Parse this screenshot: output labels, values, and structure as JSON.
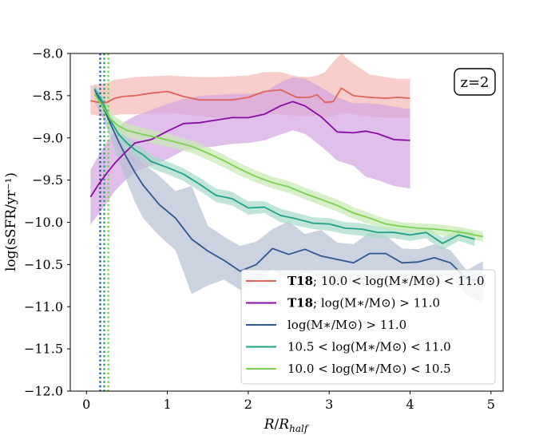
{
  "chart_data": {
    "type": "line",
    "title": "",
    "xlabel": "R/R_half",
    "ylabel": "log(sSFR/yr⁻¹)",
    "xlim": [
      -0.2,
      5.15
    ],
    "ylim": [
      -12.0,
      -8.0
    ],
    "x_ticks": [
      0,
      1,
      2,
      3,
      4,
      5
    ],
    "x_tick_labels": [
      "0",
      "1",
      "2",
      "3",
      "4",
      "5"
    ],
    "y_ticks": [
      -12.0,
      -11.5,
      -11.0,
      -10.5,
      -10.0,
      -9.5,
      -9.0,
      -8.5,
      -8.0
    ],
    "y_tick_labels": [
      "−12.0",
      "−11.5",
      "−11.0",
      "−10.5",
      "−10.0",
      "−9.5",
      "−9.0",
      "−8.5",
      "−8.0"
    ],
    "annotation": "z=2",
    "legend_position": "bottom-right",
    "vlines": [
      {
        "x": 0.17,
        "color": "#31578c",
        "style": "dotted"
      },
      {
        "x": 0.22,
        "color": "#1fa187",
        "style": "dotted"
      },
      {
        "x": 0.27,
        "color": "#7ad151",
        "style": "dotted"
      }
    ],
    "series": [
      {
        "name": "T18; 10.0 < log(M*/M☉) < 11.0",
        "legend_bold": "T18",
        "legend_rest": "; 10.0 < log(M∗/M⊙) < 11.0",
        "color": "#e0635a",
        "band_color": "#f4b9b4",
        "x": [
          0.05,
          0.15,
          0.25,
          0.35,
          0.45,
          0.6,
          0.8,
          1.0,
          1.2,
          1.4,
          1.6,
          1.8,
          2.0,
          2.2,
          2.4,
          2.6,
          2.75,
          2.85,
          2.95,
          3.05,
          3.15,
          3.3,
          3.5,
          3.7,
          3.85,
          4.0
        ],
        "y": [
          -8.56,
          -8.58,
          -8.58,
          -8.53,
          -8.51,
          -8.5,
          -8.47,
          -8.45,
          -8.51,
          -8.55,
          -8.55,
          -8.55,
          -8.52,
          -8.45,
          -8.43,
          -8.52,
          -8.52,
          -8.49,
          -8.58,
          -8.57,
          -8.41,
          -8.5,
          -8.52,
          -8.53,
          -8.52,
          -8.53
        ],
        "upper": [
          -8.38,
          -8.36,
          -8.35,
          -8.31,
          -8.3,
          -8.28,
          -8.27,
          -8.26,
          -8.27,
          -8.28,
          -8.28,
          -8.27,
          -8.26,
          -8.22,
          -8.22,
          -8.27,
          -8.28,
          -8.26,
          -8.22,
          -8.1,
          -8.0,
          -8.12,
          -8.25,
          -8.28,
          -8.3,
          -8.3
        ],
        "lower": [
          -8.72,
          -8.74,
          -8.75,
          -8.73,
          -8.72,
          -8.72,
          -8.71,
          -8.7,
          -8.72,
          -8.74,
          -8.76,
          -8.76,
          -8.75,
          -8.72,
          -8.72,
          -8.74,
          -8.75,
          -8.73,
          -8.76,
          -8.74,
          -8.7,
          -8.72,
          -8.75,
          -8.76,
          -8.76,
          -8.76
        ]
      },
      {
        "name": "T18; log(M*/M☉) > 11.0",
        "legend_bold": "T18",
        "legend_rest": "; log(M∗/M⊙) > 11.0",
        "color": "#8b0aa5",
        "band_color": "#d3a4e1",
        "x": [
          0.05,
          0.15,
          0.25,
          0.35,
          0.45,
          0.6,
          0.8,
          1.0,
          1.2,
          1.4,
          1.6,
          1.8,
          2.0,
          2.2,
          2.4,
          2.55,
          2.7,
          2.9,
          3.1,
          3.3,
          3.45,
          3.6,
          3.8,
          4.0
        ],
        "y": [
          -9.7,
          -9.55,
          -9.42,
          -9.3,
          -9.2,
          -9.06,
          -9.02,
          -8.92,
          -8.83,
          -8.82,
          -8.79,
          -8.76,
          -8.76,
          -8.72,
          -8.62,
          -8.57,
          -8.62,
          -8.75,
          -8.93,
          -8.94,
          -8.92,
          -8.95,
          -9.02,
          -9.03
        ],
        "upper": [
          -9.38,
          -9.21,
          -9.05,
          -8.93,
          -8.82,
          -8.74,
          -8.67,
          -8.6,
          -8.54,
          -8.5,
          -8.49,
          -8.48,
          -8.48,
          -8.46,
          -8.34,
          -8.28,
          -8.3,
          -8.4,
          -8.52,
          -8.59,
          -8.59,
          -8.6,
          -8.63,
          -8.66
        ],
        "lower": [
          -10.03,
          -9.9,
          -9.77,
          -9.63,
          -9.53,
          -9.4,
          -9.33,
          -9.25,
          -9.15,
          -9.12,
          -9.1,
          -9.07,
          -9.06,
          -9.03,
          -8.96,
          -8.91,
          -8.95,
          -9.1,
          -9.27,
          -9.33,
          -9.46,
          -9.5,
          -9.57,
          -9.6
        ]
      },
      {
        "name": "log(M*/M☉) > 11.0",
        "legend_bold": "",
        "legend_rest": "log(M∗/M⊙) > 11.0",
        "color": "#31578c",
        "band_color": "#b4c0d2",
        "x": [
          0.1,
          0.2,
          0.3,
          0.4,
          0.5,
          0.6,
          0.7,
          0.9,
          1.1,
          1.3,
          1.5,
          1.7,
          1.9,
          2.1,
          2.3,
          2.5,
          2.7,
          2.9,
          3.1,
          3.3,
          3.5,
          3.7,
          3.9,
          4.1,
          4.3,
          4.5,
          4.7,
          4.9
        ],
        "y": [
          -8.43,
          -8.62,
          -8.84,
          -9.05,
          -9.24,
          -9.41,
          -9.56,
          -9.79,
          -9.95,
          -10.2,
          -10.34,
          -10.45,
          -10.58,
          -10.5,
          -10.31,
          -10.38,
          -10.32,
          -10.4,
          -10.44,
          -10.48,
          -10.37,
          -10.37,
          -10.48,
          -10.47,
          -10.42,
          -10.48,
          -10.67,
          -10.7
        ],
        "upper": [
          -8.38,
          -8.54,
          -8.74,
          -8.91,
          -9.06,
          -9.18,
          -9.3,
          -9.45,
          -9.63,
          -9.57,
          -10.04,
          -10.17,
          -10.28,
          -10.23,
          -10.08,
          -9.99,
          -10.14,
          -10.09,
          -10.24,
          -10.26,
          -10.12,
          -10.16,
          -10.31,
          -10.32,
          -10.26,
          -10.33,
          -10.57,
          -10.46
        ],
        "lower": [
          -8.58,
          -8.76,
          -9.01,
          -9.28,
          -9.52,
          -9.76,
          -9.95,
          -10.16,
          -10.33,
          -10.85,
          -10.75,
          -10.68,
          -10.8,
          -10.73,
          -10.55,
          -10.7,
          -10.6,
          -10.67,
          -10.7,
          -10.72,
          -10.65,
          -10.65,
          -10.69,
          -10.71,
          -10.65,
          -10.63,
          -10.87,
          -10.95
        ]
      },
      {
        "name": "10.5 < log(M*/M☉) < 11.0",
        "legend_bold": "",
        "legend_rest": "10.5 < log(M∗/M⊙) < 11.0",
        "color": "#1fa187",
        "band_color": "#a7dac9",
        "x": [
          0.1,
          0.2,
          0.3,
          0.4,
          0.5,
          0.6,
          0.7,
          0.8,
          1.0,
          1.2,
          1.4,
          1.6,
          1.8,
          2.0,
          2.2,
          2.4,
          2.6,
          2.8,
          3.0,
          3.2,
          3.4,
          3.6,
          3.8,
          4.0,
          4.2,
          4.4,
          4.6,
          4.8
        ],
        "y": [
          -8.42,
          -8.57,
          -8.8,
          -8.96,
          -9.06,
          -9.14,
          -9.2,
          -9.28,
          -9.35,
          -9.43,
          -9.55,
          -9.68,
          -9.72,
          -9.83,
          -9.82,
          -9.92,
          -9.96,
          -10.01,
          -10.02,
          -10.07,
          -10.08,
          -10.12,
          -10.12,
          -10.15,
          -10.12,
          -10.25,
          -10.15,
          -10.2
        ],
        "upper": [
          -8.36,
          -8.5,
          -8.72,
          -8.88,
          -8.98,
          -9.06,
          -9.12,
          -9.2,
          -9.28,
          -9.36,
          -9.47,
          -9.6,
          -9.64,
          -9.75,
          -9.75,
          -9.84,
          -9.89,
          -9.94,
          -9.95,
          -10.0,
          -10.01,
          -10.05,
          -10.06,
          -10.09,
          -10.06,
          -10.18,
          -10.08,
          -10.12
        ],
        "lower": [
          -8.49,
          -8.64,
          -8.88,
          -9.04,
          -9.14,
          -9.22,
          -9.28,
          -9.36,
          -9.43,
          -9.51,
          -9.63,
          -9.76,
          -9.8,
          -9.91,
          -9.89,
          -10.0,
          -10.04,
          -10.08,
          -10.1,
          -10.14,
          -10.16,
          -10.19,
          -10.19,
          -10.22,
          -10.19,
          -10.33,
          -10.22,
          -10.28
        ]
      },
      {
        "name": "10.0 < log(M*/M☉) < 10.5",
        "legend_bold": "",
        "legend_rest": "10.0 < log(M∗/M⊙) < 10.5",
        "color": "#7ad151",
        "band_color": "#c8e9b3",
        "x": [
          0.1,
          0.2,
          0.3,
          0.4,
          0.5,
          0.7,
          0.9,
          1.1,
          1.3,
          1.5,
          1.7,
          1.9,
          2.1,
          2.3,
          2.5,
          2.7,
          2.9,
          3.1,
          3.3,
          3.5,
          3.7,
          3.9,
          4.1,
          4.3,
          4.5,
          4.7,
          4.9
        ],
        "y": [
          -8.48,
          -8.62,
          -8.78,
          -8.86,
          -8.91,
          -8.96,
          -9.0,
          -9.05,
          -9.1,
          -9.18,
          -9.27,
          -9.37,
          -9.46,
          -9.53,
          -9.58,
          -9.66,
          -9.73,
          -9.8,
          -9.89,
          -9.95,
          -10.02,
          -10.05,
          -10.07,
          -10.08,
          -10.1,
          -10.13,
          -10.17
        ],
        "upper": [
          -8.42,
          -8.55,
          -8.7,
          -8.78,
          -8.83,
          -8.88,
          -8.93,
          -8.98,
          -9.03,
          -9.11,
          -9.2,
          -9.3,
          -9.39,
          -9.46,
          -9.51,
          -9.59,
          -9.66,
          -9.73,
          -9.82,
          -9.89,
          -9.96,
          -10.0,
          -10.01,
          -10.02,
          -10.04,
          -10.07,
          -10.11
        ],
        "lower": [
          -8.55,
          -8.7,
          -8.86,
          -8.94,
          -8.99,
          -9.04,
          -9.08,
          -9.13,
          -9.18,
          -9.26,
          -9.35,
          -9.45,
          -9.53,
          -9.6,
          -9.65,
          -9.73,
          -9.8,
          -9.87,
          -9.96,
          -10.02,
          -10.08,
          -10.11,
          -10.13,
          -10.14,
          -10.17,
          -10.19,
          -10.23
        ]
      }
    ]
  }
}
